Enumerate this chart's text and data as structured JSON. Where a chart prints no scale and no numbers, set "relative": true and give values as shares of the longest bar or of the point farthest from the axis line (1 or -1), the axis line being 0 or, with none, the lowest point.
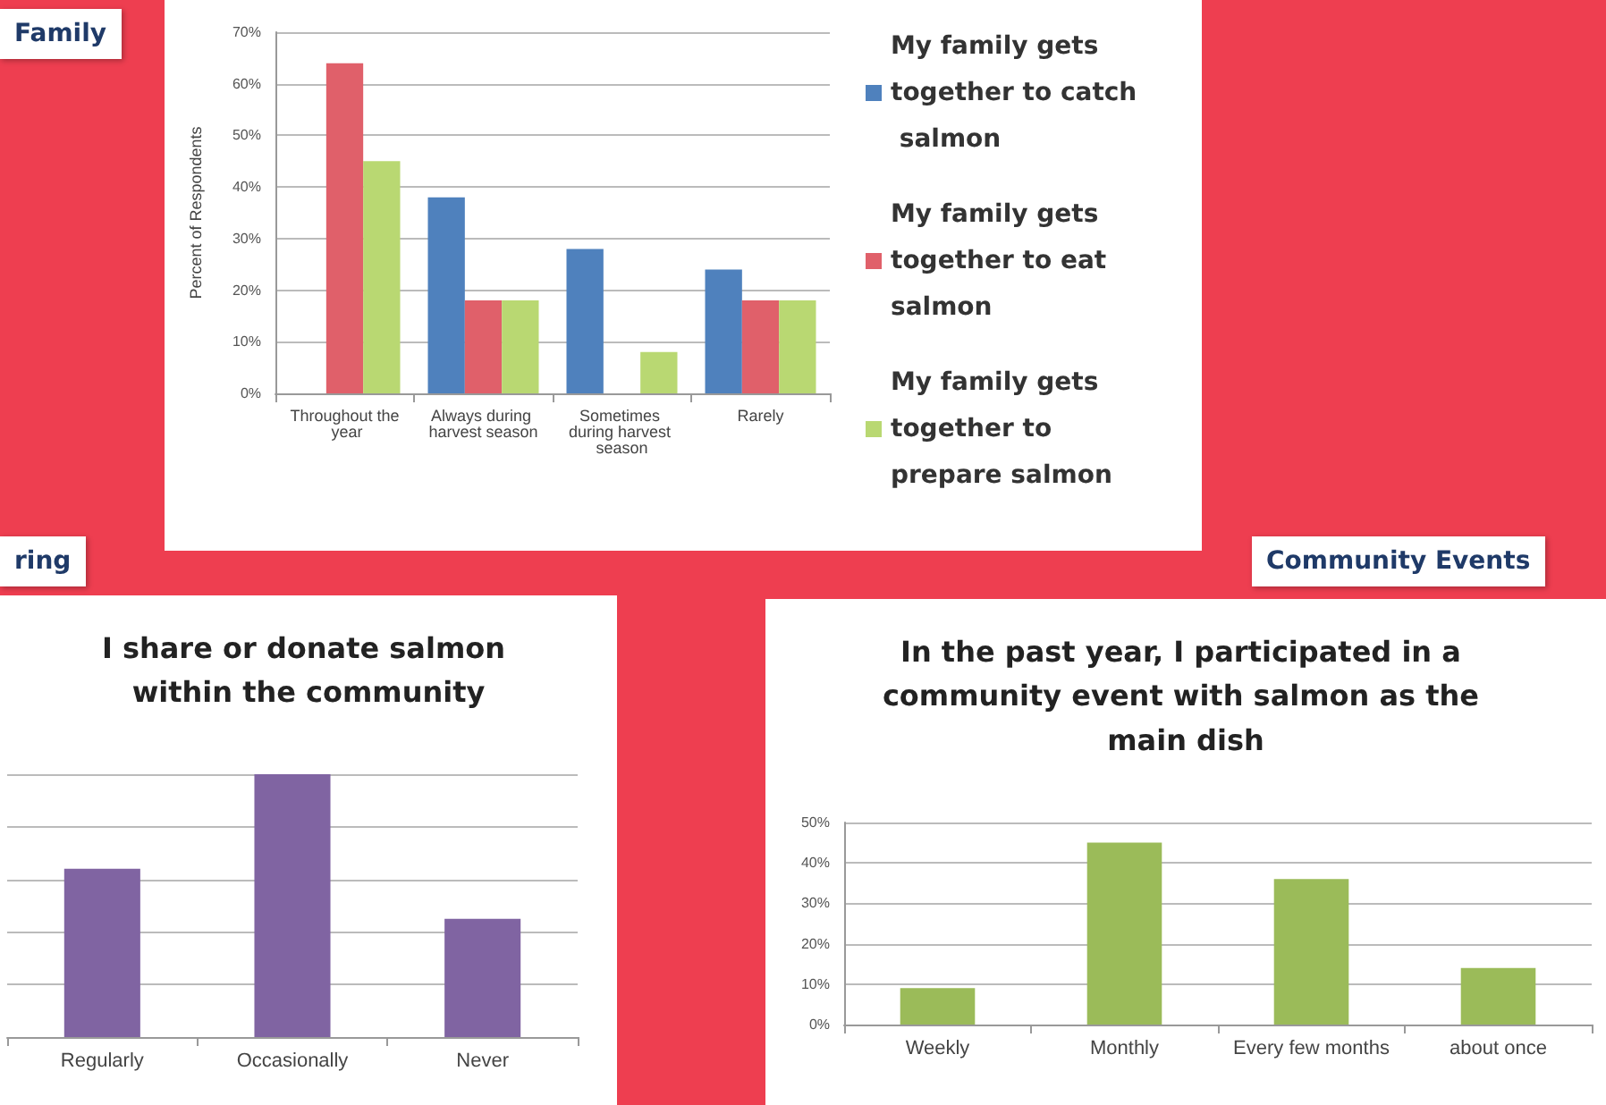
{
  "chart_data": [
    {
      "type": "bar",
      "annotations": [
        "Family"
      ],
      "ylabel": "Percent of Respondents",
      "categories": [
        "Throughout the year",
        "Always during harvest season",
        "Sometimes during harvest season",
        "Rarely"
      ],
      "series": [
        {
          "name": "My family gets together to catch salmon",
          "color": "#4f81bd",
          "values": [
            0,
            38,
            28,
            24
          ]
        },
        {
          "name": "My family gets together to eat salmon",
          "color": "#e0606a",
          "values": [
            64,
            18,
            0,
            18
          ]
        },
        {
          "name": "My family gets together to prepare salmon",
          "color": "#b9d872",
          "values": [
            45,
            18,
            8,
            18
          ]
        }
      ],
      "ylim": [
        0,
        70
      ],
      "yticks": [
        {
          "value": 0,
          "label": "0%"
        },
        {
          "value": 10,
          "label": "10%"
        },
        {
          "value": 20,
          "label": "20%"
        },
        {
          "value": 30,
          "label": "30%"
        },
        {
          "value": 40,
          "label": "40%"
        },
        {
          "value": 50,
          "label": "50%"
        },
        {
          "value": 60,
          "label": "60%"
        },
        {
          "value": 70,
          "label": "70%"
        }
      ],
      "grid": "y",
      "legend": "right"
    },
    {
      "type": "bar",
      "annotations": [
        "ring"
      ],
      "title": "I share or donate salmon within the community",
      "categories": [
        "Regularly",
        "Occasionally",
        "Never"
      ],
      "values": [
        0.64,
        1,
        0.45
      ],
      "color": "#8064a2",
      "relative": true,
      "grid": "y"
    },
    {
      "type": "bar",
      "annotations": [
        "Community Events"
      ],
      "title": "In the past year, I participated in a community event with salmon as the main dish",
      "categories": [
        "Weekly",
        "Monthly",
        "Every few months",
        "about once"
      ],
      "values": [
        9,
        45,
        36,
        14
      ],
      "color": "#9bbb59",
      "ylim": [
        0,
        50
      ],
      "yticks": [
        {
          "value": 0,
          "label": "0%"
        },
        {
          "value": 10,
          "label": "10%"
        },
        {
          "value": 20,
          "label": "20%"
        },
        {
          "value": 30,
          "label": "30%"
        },
        {
          "value": 40,
          "label": "40%"
        },
        {
          "value": 50,
          "label": "50%"
        }
      ],
      "grid": "y"
    }
  ]
}
